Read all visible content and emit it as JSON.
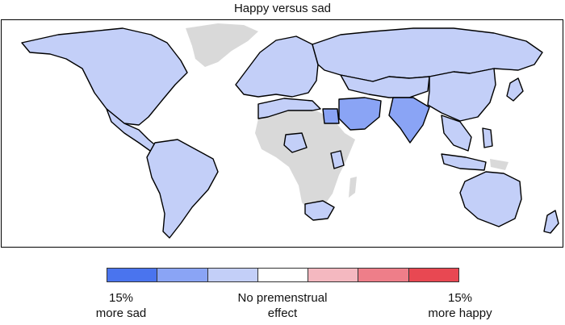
{
  "title": "Happy versus sad",
  "legend": {
    "colors": [
      "#4a74ee",
      "#8aa4f5",
      "#c3cff8",
      "#ffffff",
      "#f4b8c0",
      "#ee7e89",
      "#e84852"
    ],
    "left_label_line1": "15%",
    "left_label_line2": "more sad",
    "middle_label_line1": "No premenstrual",
    "middle_label_line2": "effect",
    "right_label_line1": "15%",
    "right_label_line2": "more happy"
  },
  "map_colors": {
    "no_data": "#d9d9d9",
    "light_sad": "#c3cff8",
    "medium_sad": "#8aa4f5"
  }
}
